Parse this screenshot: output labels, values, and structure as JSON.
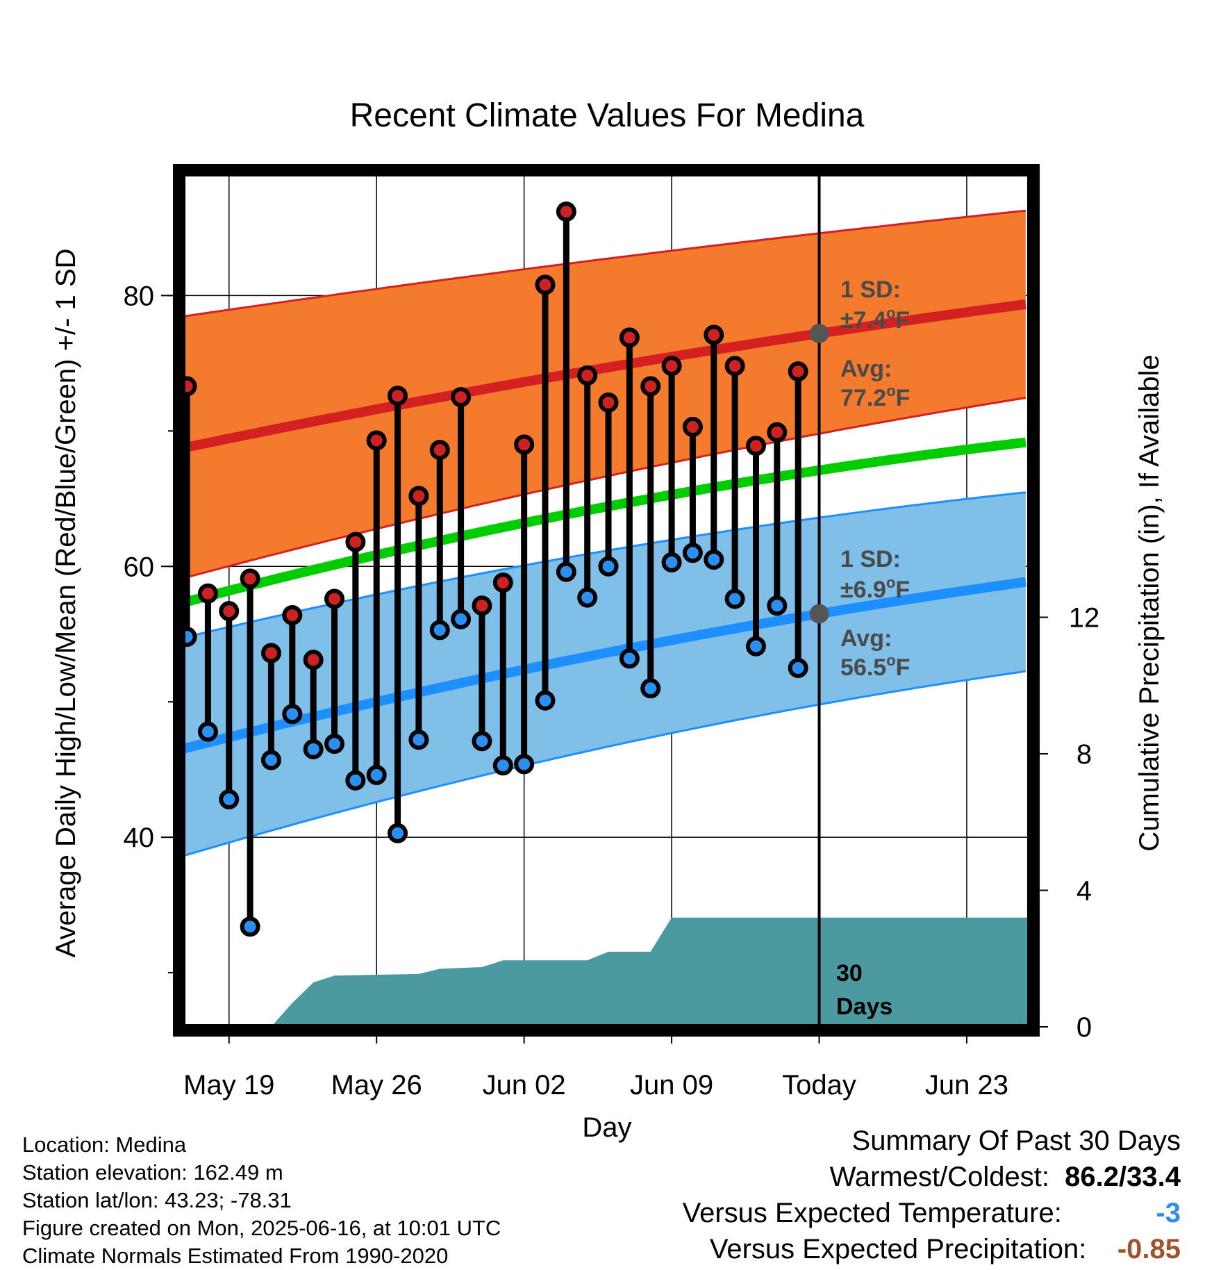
{
  "chart_data": {
    "type": "line",
    "title": "Recent Climate Values For Medina",
    "xlabel": "Day",
    "ylabel": "Average Daily High/Low/Mean (Red/Blue/Green) +/- 1 SD",
    "y2label": "Cumulative Precipitation (in), If Available",
    "x_ticks": [
      "May 19",
      "May 26",
      "Jun 02",
      "Jun 09",
      "Today",
      "Jun 23"
    ],
    "y_ticks": [
      "40",
      "60",
      "80"
    ],
    "y2_ticks": [
      "0",
      "4",
      "8",
      "12"
    ],
    "ylim": [
      26,
      89
    ],
    "y2lim": [
      0,
      25
    ],
    "x_range_days": [
      "May 17",
      "Jun 26"
    ],
    "today": "Jun 16",
    "daily": [
      {
        "date": "May 17",
        "high": 73.3,
        "low": 54.8
      },
      {
        "date": "May 18",
        "high": 58.0,
        "low": 47.8
      },
      {
        "date": "May 19",
        "high": 56.7,
        "low": 42.8
      },
      {
        "date": "May 20",
        "high": 59.1,
        "low": 33.4
      },
      {
        "date": "May 21",
        "high": 53.6,
        "low": 45.7
      },
      {
        "date": "May 22",
        "high": 56.4,
        "low": 49.1
      },
      {
        "date": "May 23",
        "high": 53.1,
        "low": 46.5
      },
      {
        "date": "May 24",
        "high": 57.6,
        "low": 46.9
      },
      {
        "date": "May 25",
        "high": 61.8,
        "low": 44.2
      },
      {
        "date": "May 26",
        "high": 69.3,
        "low": 44.6
      },
      {
        "date": "May 27",
        "high": 72.6,
        "low": 40.3
      },
      {
        "date": "May 28",
        "high": 65.2,
        "low": 47.2
      },
      {
        "date": "May 29",
        "high": 68.6,
        "low": 55.3
      },
      {
        "date": "May 30",
        "high": 72.5,
        "low": 56.1
      },
      {
        "date": "May 31",
        "high": 57.1,
        "low": 47.1
      },
      {
        "date": "Jun 01",
        "high": 58.8,
        "low": 45.3
      },
      {
        "date": "Jun 02",
        "high": 69.0,
        "low": 45.4
      },
      {
        "date": "Jun 03",
        "high": 80.8,
        "low": 50.1
      },
      {
        "date": "Jun 04",
        "high": 86.2,
        "low": 59.6
      },
      {
        "date": "Jun 05",
        "high": 74.1,
        "low": 57.7
      },
      {
        "date": "Jun 06",
        "high": 72.1,
        "low": 60.0
      },
      {
        "date": "Jun 07",
        "high": 76.9,
        "low": 53.2
      },
      {
        "date": "Jun 08",
        "high": 73.3,
        "low": 51.0
      },
      {
        "date": "Jun 09",
        "high": 74.8,
        "low": 60.3
      },
      {
        "date": "Jun 10",
        "high": 70.3,
        "low": 61.0
      },
      {
        "date": "Jun 11",
        "high": 77.1,
        "low": 60.5
      },
      {
        "date": "Jun 12",
        "high": 74.8,
        "low": 57.6
      },
      {
        "date": "Jun 13",
        "high": 68.9,
        "low": 54.1
      },
      {
        "date": "Jun 14",
        "high": 69.9,
        "low": 57.1
      },
      {
        "date": "Jun 15",
        "high": 74.4,
        "low": 52.5
      }
    ],
    "normals": {
      "dates": [
        "May 17",
        "Jun 16",
        "Jun 26"
      ],
      "avg_high": [
        68.8,
        77.2,
        79.4
      ],
      "high_sd_upper": [
        78.5,
        84.6,
        86.3
      ],
      "high_sd_lower": [
        59.2,
        69.8,
        72.5
      ],
      "avg_mean": [
        57.4,
        67.1,
        69.2
      ],
      "avg_low": [
        46.6,
        56.5,
        58.9
      ],
      "low_sd_upper": [
        54.8,
        63.6,
        65.5
      ],
      "low_sd_lower": [
        38.7,
        49.8,
        52.3
      ]
    },
    "cumulative_precip": [
      {
        "date": "May 21",
        "value": 0.0
      },
      {
        "date": "May 22",
        "value": 0.7
      },
      {
        "date": "May 23",
        "value": 1.3
      },
      {
        "date": "May 24",
        "value": 1.5
      },
      {
        "date": "May 28",
        "value": 1.55
      },
      {
        "date": "May 29",
        "value": 1.7
      },
      {
        "date": "May 31",
        "value": 1.75
      },
      {
        "date": "Jun 01",
        "value": 1.95
      },
      {
        "date": "Jun 05",
        "value": 1.95
      },
      {
        "date": "Jun 06",
        "value": 2.2
      },
      {
        "date": "Jun 08",
        "value": 2.2
      },
      {
        "date": "Jun 09",
        "value": 3.2
      },
      {
        "date": "Jun 26",
        "value": 3.2
      }
    ],
    "colors": {
      "high_band": "#f47a2e",
      "high_line": "#d42020",
      "low_band": "#7fbfe8",
      "low_line": "#1e8fff",
      "mean_line": "#00cc00",
      "precip": "#4a9aa0",
      "high_marker": "#cc2222",
      "low_marker": "#2a8ff0",
      "avg_dot": "#555555"
    }
  },
  "annotations": {
    "high_sd_label": "1 SD:",
    "high_sd_value": "±7.4",
    "high_avg_label": "Avg:",
    "high_avg_value": "77.2",
    "low_sd_label": "1 SD:",
    "low_sd_value": "±6.9",
    "low_avg_label": "Avg:",
    "low_avg_value": "56.5",
    "deg_symbol": "o",
    "unit": "F",
    "window_days": "30",
    "window_label": "Days"
  },
  "footer": {
    "location": "Location: Medina",
    "elevation": "Station elevation: 162.49 m",
    "latlon": "Station lat/lon: 43.23; -78.31",
    "created": "Figure created on Mon, 2025-06-16, at 10:01 UTC",
    "normals": "Climate Normals Estimated From 1990-2020"
  },
  "summary": {
    "title": "Summary Of Past 30 Days",
    "warm_cold_label": "Warmest/Coldest:",
    "warm_cold_value": "86.2/33.4",
    "temp_label": "Versus Expected Temperature:",
    "temp_value": "-3",
    "temp_color": "#2a8ff0",
    "precip_label": "Versus Expected Precipitation:",
    "precip_value": "-0.85",
    "precip_color": "#a0522d"
  }
}
